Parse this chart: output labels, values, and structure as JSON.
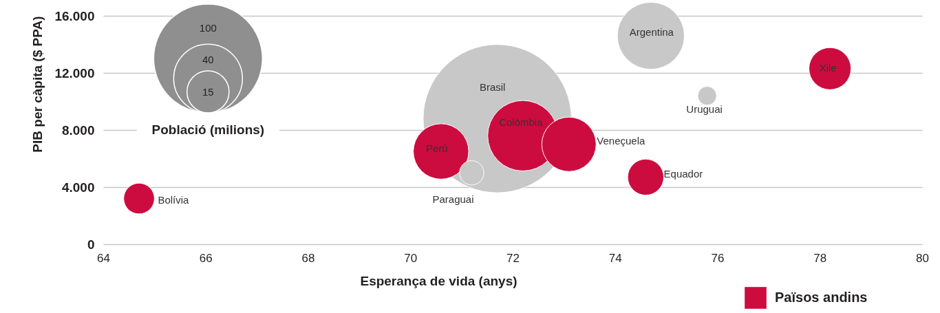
{
  "chart_data": {
    "type": "bubble",
    "xlabel": "Esperança de vida (anys)",
    "ylabel": "PIB per càpita ($ PPA)",
    "legend_title": "Població (milions)",
    "xlim": [
      64,
      80
    ],
    "xticks": [
      64,
      66,
      68,
      70,
      72,
      74,
      76,
      78,
      80
    ],
    "ylim": [
      0,
      16000
    ],
    "yticks": [
      0,
      {
        "value": 4000,
        "label": "4.000"
      },
      {
        "value": 8000,
        "label": "8.000"
      },
      {
        "value": 12000,
        "label": "12.000"
      },
      {
        "value": 16000,
        "label": "16.000"
      }
    ],
    "grid": "y",
    "legend": "bottom right",
    "size_legend": [
      15,
      40,
      100
    ],
    "series": [
      {
        "name": "Països andins",
        "color": "#cc0c3f",
        "x": [
          64.7,
          70.6,
          72.2,
          73.1,
          74.6,
          78.2
        ],
        "values": [
          3200,
          6500,
          7600,
          7000,
          4700,
          12300
        ],
        "sizes": [
          8,
          26,
          42,
          25,
          11,
          15
        ]
      },
      {
        "color": "#c8c8c8",
        "x": [
          71.7,
          71.2,
          74.7,
          75.8
        ],
        "values": [
          8800,
          5000,
          14600,
          10400
        ],
        "sizes": [
          186,
          5,
          38,
          3
        ]
      }
    ],
    "annotations": [
      {
        "text": "Bolívia",
        "x": 64.7,
        "y": 3200
      },
      {
        "text": "Perú",
        "x": 70.6,
        "y": 6500
      },
      {
        "text": "Paraguai",
        "x": 71.2,
        "y": 5000
      },
      {
        "text": "Brasil",
        "x": 71.7,
        "y": 8800
      },
      {
        "text": "Colòmbia",
        "x": 72.2,
        "y": 7600
      },
      {
        "text": "Veneçuela",
        "x": 73.1,
        "y": 7000
      },
      {
        "text": "Equador",
        "x": 74.6,
        "y": 4700
      },
      {
        "text": "Uruguai",
        "x": 75.8,
        "y": 10400
      },
      {
        "text": "Argentina",
        "x": 74.7,
        "y": 14600
      },
      {
        "text": "Xile",
        "x": 78.2,
        "y": 12300
      }
    ]
  }
}
